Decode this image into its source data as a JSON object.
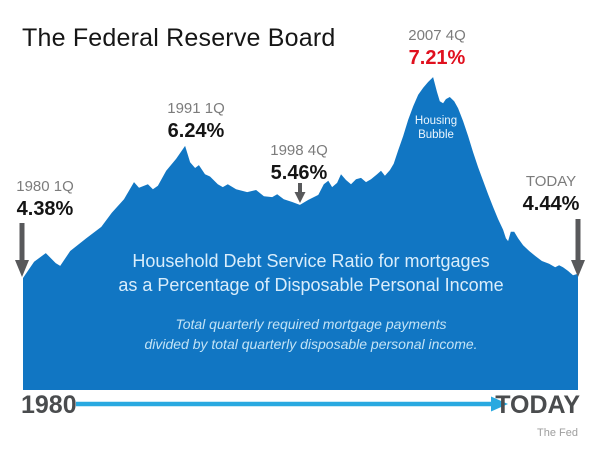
{
  "title": "The Federal Reserve Board",
  "colors": {
    "area_blue": "#1176c3",
    "timeline_blue": "#29a9e0",
    "highlight_red": "#e0101e",
    "label_gray": "#7c7c7c",
    "value_black": "#151515",
    "arrow_gray": "#58595b",
    "axis_text_gray": "#4a4c4e"
  },
  "annotations": {
    "y1980": {
      "label": "1980 1Q",
      "value": "4.38%"
    },
    "y1991": {
      "label": "1991 1Q",
      "value": "6.24%"
    },
    "y1998": {
      "label": "1998 4Q",
      "value": "5.46%"
    },
    "y2007": {
      "label": "2007 4Q",
      "value": "7.21%"
    },
    "today": {
      "label": "TODAY",
      "value": "4.44%"
    }
  },
  "area_labels": {
    "bubble_line1": "Housing",
    "bubble_line2": "Bubble",
    "caption_line1": "Household Debt Service Ratio for mortgages",
    "caption_line2": "as a Percentage of Disposable Personal Income",
    "subcaption_line1": "Total quarterly required mortgage payments",
    "subcaption_line2": "divided by total quarterly disposable personal income."
  },
  "timeline": {
    "start_label": "1980",
    "end_label": "TODAY"
  },
  "source": "The Fed",
  "chart_data": {
    "type": "area",
    "title": "Household Debt Service Ratio for mortgages as a Percentage of Disposable Personal Income",
    "subtitle": "Total quarterly required mortgage payments divided by total quarterly disposable personal income.",
    "x_range": [
      "1980",
      "TODAY"
    ],
    "unit": "%",
    "grid": false,
    "legend": false,
    "y_axis_clipped_at": 2.8,
    "key_points": [
      {
        "label": "1980 1Q",
        "value": 4.38
      },
      {
        "label": "1991 1Q",
        "value": 6.24
      },
      {
        "label": "1998 4Q",
        "value": 5.46
      },
      {
        "label": "2007 4Q",
        "value": 7.21,
        "annotation": "Housing Bubble",
        "emphasis": "red"
      },
      {
        "label": "TODAY",
        "value": 4.44
      }
    ],
    "series_note": "estimated quarterly profile, t = fraction of time axis from 1980 to today, value = percent",
    "series": [
      [
        0.0,
        4.38
      ],
      [
        0.02,
        4.61
      ],
      [
        0.041,
        4.73
      ],
      [
        0.059,
        4.59
      ],
      [
        0.067,
        4.55
      ],
      [
        0.085,
        4.76
      ],
      [
        0.114,
        4.94
      ],
      [
        0.141,
        5.1
      ],
      [
        0.16,
        5.3
      ],
      [
        0.182,
        5.49
      ],
      [
        0.2,
        5.73
      ],
      [
        0.209,
        5.65
      ],
      [
        0.225,
        5.7
      ],
      [
        0.234,
        5.63
      ],
      [
        0.243,
        5.68
      ],
      [
        0.258,
        5.89
      ],
      [
        0.276,
        6.06
      ],
      [
        0.292,
        6.24
      ],
      [
        0.301,
        6.01
      ],
      [
        0.31,
        5.93
      ],
      [
        0.317,
        5.97
      ],
      [
        0.328,
        5.84
      ],
      [
        0.337,
        5.81
      ],
      [
        0.351,
        5.7
      ],
      [
        0.36,
        5.66
      ],
      [
        0.369,
        5.7
      ],
      [
        0.384,
        5.63
      ],
      [
        0.404,
        5.59
      ],
      [
        0.42,
        5.62
      ],
      [
        0.434,
        5.53
      ],
      [
        0.449,
        5.52
      ],
      [
        0.458,
        5.56
      ],
      [
        0.47,
        5.49
      ],
      [
        0.485,
        5.45
      ],
      [
        0.499,
        5.41
      ],
      [
        0.514,
        5.48
      ],
      [
        0.532,
        5.55
      ],
      [
        0.542,
        5.7
      ],
      [
        0.55,
        5.75
      ],
      [
        0.557,
        5.66
      ],
      [
        0.566,
        5.72
      ],
      [
        0.573,
        5.84
      ],
      [
        0.582,
        5.76
      ],
      [
        0.591,
        5.7
      ],
      [
        0.6,
        5.77
      ],
      [
        0.609,
        5.79
      ],
      [
        0.618,
        5.73
      ],
      [
        0.627,
        5.77
      ],
      [
        0.638,
        5.84
      ],
      [
        0.645,
        5.89
      ],
      [
        0.652,
        5.82
      ],
      [
        0.661,
        5.9
      ],
      [
        0.668,
        5.99
      ],
      [
        0.676,
        6.18
      ],
      [
        0.685,
        6.38
      ],
      [
        0.694,
        6.61
      ],
      [
        0.703,
        6.8
      ],
      [
        0.712,
        6.96
      ],
      [
        0.721,
        7.06
      ],
      [
        0.73,
        7.14
      ],
      [
        0.739,
        7.21
      ],
      [
        0.746,
        7.0
      ],
      [
        0.751,
        6.87
      ],
      [
        0.757,
        6.84
      ],
      [
        0.762,
        6.9
      ],
      [
        0.769,
        6.93
      ],
      [
        0.777,
        6.87
      ],
      [
        0.784,
        6.77
      ],
      [
        0.793,
        6.59
      ],
      [
        0.802,
        6.38
      ],
      [
        0.811,
        6.15
      ],
      [
        0.82,
        5.94
      ],
      [
        0.829,
        5.75
      ],
      [
        0.838,
        5.56
      ],
      [
        0.847,
        5.38
      ],
      [
        0.856,
        5.21
      ],
      [
        0.865,
        5.06
      ],
      [
        0.87,
        4.94
      ],
      [
        0.874,
        4.9
      ],
      [
        0.879,
        5.03
      ],
      [
        0.885,
        5.03
      ],
      [
        0.892,
        4.94
      ],
      [
        0.901,
        4.84
      ],
      [
        0.912,
        4.76
      ],
      [
        0.923,
        4.69
      ],
      [
        0.935,
        4.62
      ],
      [
        0.948,
        4.58
      ],
      [
        0.959,
        4.53
      ],
      [
        0.966,
        4.56
      ],
      [
        0.973,
        4.53
      ],
      [
        0.982,
        4.48
      ],
      [
        0.991,
        4.42
      ],
      [
        1.0,
        4.44
      ]
    ],
    "source": "The Fed"
  }
}
